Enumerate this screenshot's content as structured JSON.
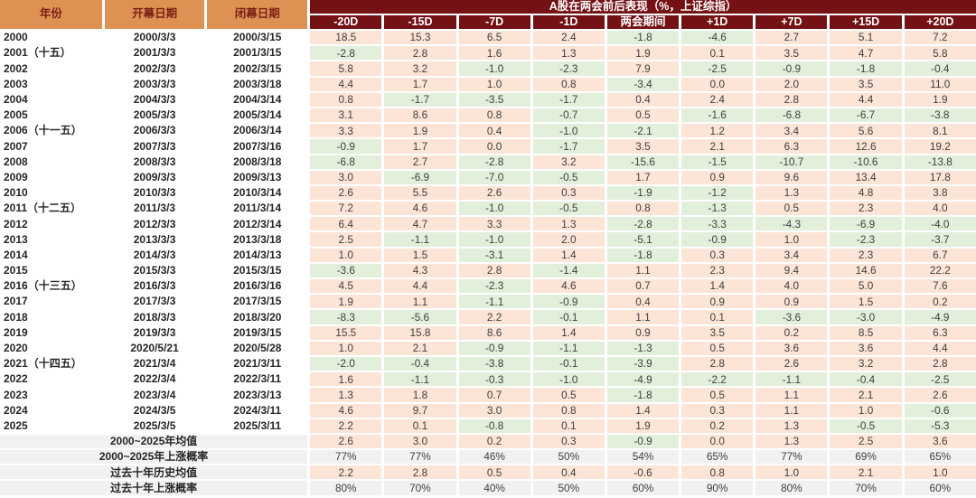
{
  "chart_data": {
    "type": "table",
    "title": "A股在两会前后表现（%，上证综指）",
    "columns_left": [
      "年份",
      "开幕日期",
      "闭幕日期"
    ],
    "sub_columns": [
      "-20D",
      "-15D",
      "-7D",
      "-1D",
      "两会期间",
      "+1D",
      "+7D",
      "+15D",
      "+20D"
    ],
    "rows": [
      {
        "year": "2000",
        "open": "2000/3/3",
        "close": "2000/3/15",
        "values": [
          "18.5",
          "15.3",
          "6.5",
          "2.4",
          "-1.8",
          "-4.6",
          "2.7",
          "5.1",
          "7.2"
        ]
      },
      {
        "year": "2001（十五）",
        "open": "2001/3/3",
        "close": "2001/3/15",
        "values": [
          "-2.8",
          "2.8",
          "1.6",
          "1.3",
          "1.9",
          "0.1",
          "3.5",
          "4.7",
          "5.8"
        ]
      },
      {
        "year": "2002",
        "open": "2002/3/3",
        "close": "2002/3/15",
        "values": [
          "5.8",
          "3.2",
          "-1.0",
          "-2.3",
          "7.9",
          "-2.5",
          "-0.9",
          "-1.8",
          "-0.4"
        ]
      },
      {
        "year": "2003",
        "open": "2003/3/3",
        "close": "2003/3/18",
        "values": [
          "4.4",
          "1.7",
          "1.0",
          "0.8",
          "-3.4",
          "0.0",
          "2.0",
          "3.5",
          "11.0"
        ]
      },
      {
        "year": "2004",
        "open": "2004/3/3",
        "close": "2004/3/14",
        "values": [
          "0.8",
          "-1.7",
          "-3.5",
          "-1.7",
          "0.4",
          "2.4",
          "2.8",
          "4.4",
          "1.9"
        ]
      },
      {
        "year": "2005",
        "open": "2005/3/3",
        "close": "2005/3/14",
        "values": [
          "3.1",
          "8.6",
          "0.8",
          "-0.7",
          "0.5",
          "-1.6",
          "-6.8",
          "-6.7",
          "-3.8"
        ]
      },
      {
        "year": "2006（十一五）",
        "open": "2006/3/3",
        "close": "2006/3/14",
        "values": [
          "3.3",
          "1.9",
          "0.4",
          "-1.0",
          "-2.1",
          "1.2",
          "3.4",
          "5.6",
          "8.1"
        ]
      },
      {
        "year": "2007",
        "open": "2007/3/3",
        "close": "2007/3/16",
        "values": [
          "-0.9",
          "1.7",
          "0.0",
          "-1.7",
          "3.5",
          "2.1",
          "6.3",
          "12.6",
          "19.2"
        ]
      },
      {
        "year": "2008",
        "open": "2008/3/3",
        "close": "2008/3/18",
        "values": [
          "-6.8",
          "2.7",
          "-2.8",
          "3.2",
          "-15.6",
          "-1.5",
          "-10.7",
          "-10.6",
          "-13.8"
        ]
      },
      {
        "year": "2009",
        "open": "2009/3/3",
        "close": "2009/3/13",
        "values": [
          "3.0",
          "-6.9",
          "-7.0",
          "-0.5",
          "1.7",
          "0.9",
          "9.6",
          "13.4",
          "17.8"
        ]
      },
      {
        "year": "2010",
        "open": "2010/3/3",
        "close": "2010/3/14",
        "values": [
          "2.6",
          "5.5",
          "2.6",
          "0.3",
          "-1.9",
          "-1.2",
          "1.3",
          "4.8",
          "3.8"
        ]
      },
      {
        "year": "2011（十二五）",
        "open": "2011/3/3",
        "close": "2011/3/14",
        "values": [
          "7.2",
          "4.6",
          "-1.0",
          "-0.5",
          "0.8",
          "-1.3",
          "0.5",
          "2.3",
          "4.0"
        ]
      },
      {
        "year": "2012",
        "open": "2012/3/3",
        "close": "2012/3/14",
        "values": [
          "6.4",
          "4.7",
          "3.3",
          "1.3",
          "-2.8",
          "-3.3",
          "-4.3",
          "-6.9",
          "-4.0"
        ]
      },
      {
        "year": "2013",
        "open": "2013/3/3",
        "close": "2013/3/18",
        "values": [
          "2.5",
          "-1.1",
          "-1.0",
          "2.0",
          "-5.1",
          "-0.9",
          "1.0",
          "-2.3",
          "-3.7"
        ]
      },
      {
        "year": "2014",
        "open": "2014/3/3",
        "close": "2014/3/13",
        "values": [
          "1.0",
          "1.5",
          "-3.1",
          "1.4",
          "-1.8",
          "0.3",
          "3.4",
          "2.3",
          "6.7"
        ]
      },
      {
        "year": "2015",
        "open": "2015/3/3",
        "close": "2015/3/15",
        "values": [
          "-3.6",
          "4.3",
          "2.8",
          "-1.4",
          "1.1",
          "2.3",
          "9.4",
          "14.6",
          "22.2"
        ]
      },
      {
        "year": "2016（十三五）",
        "open": "2016/3/3",
        "close": "2016/3/16",
        "values": [
          "4.5",
          "4.4",
          "-2.3",
          "4.6",
          "0.7",
          "1.4",
          "4.0",
          "5.0",
          "7.6"
        ]
      },
      {
        "year": "2017",
        "open": "2017/3/3",
        "close": "2017/3/15",
        "values": [
          "1.9",
          "1.1",
          "-1.1",
          "-0.9",
          "0.4",
          "0.9",
          "0.9",
          "1.5",
          "0.2"
        ]
      },
      {
        "year": "2018",
        "open": "2018/3/3",
        "close": "2018/3/20",
        "values": [
          "-8.3",
          "-5.6",
          "2.2",
          "-0.1",
          "1.1",
          "0.1",
          "-3.6",
          "-3.0",
          "-4.9"
        ]
      },
      {
        "year": "2019",
        "open": "2019/3/3",
        "close": "2019/3/15",
        "values": [
          "15.5",
          "15.8",
          "8.6",
          "1.4",
          "0.9",
          "3.5",
          "0.2",
          "8.5",
          "6.3"
        ]
      },
      {
        "year": "2020",
        "open": "2020/5/21",
        "close": "2020/5/28",
        "values": [
          "1.0",
          "2.1",
          "-0.9",
          "-1.1",
          "-1.3",
          "0.5",
          "3.6",
          "3.6",
          "4.4"
        ]
      },
      {
        "year": "2021（十四五）",
        "open": "2021/3/4",
        "close": "2021/3/11",
        "values": [
          "-2.0",
          "-0.4",
          "-3.8",
          "-0.1",
          "-3.9",
          "2.8",
          "2.6",
          "3.2",
          "2.8"
        ]
      },
      {
        "year": "2022",
        "open": "2022/3/4",
        "close": "2022/3/11",
        "values": [
          "1.6",
          "-1.1",
          "-0.3",
          "-1.0",
          "-4.9",
          "-2.2",
          "-1.1",
          "-0.4",
          "-2.5"
        ]
      },
      {
        "year": "2023",
        "open": "2023/3/4",
        "close": "2023/3/13",
        "values": [
          "1.3",
          "1.8",
          "0.7",
          "0.5",
          "-1.8",
          "0.5",
          "1.1",
          "2.1",
          "2.6"
        ]
      },
      {
        "year": "2024",
        "open": "2024/3/5",
        "close": "2024/3/11",
        "values": [
          "4.6",
          "9.7",
          "3.0",
          "0.8",
          "1.4",
          "0.3",
          "1.1",
          "1.0",
          "-0.6"
        ]
      },
      {
        "year": "2025",
        "open": "2025/3/5",
        "close": "2025/3/11",
        "values": [
          "2.2",
          "0.1",
          "-0.8",
          "0.1",
          "1.9",
          "0.2",
          "1.3",
          "-0.5",
          "-5.3"
        ]
      }
    ],
    "summary_rows": [
      {
        "label": "2000~2025年均值",
        "mode": "sign",
        "values": [
          "2.6",
          "3.0",
          "0.2",
          "0.3",
          "-0.9",
          "0.0",
          "1.3",
          "2.5",
          "3.6"
        ]
      },
      {
        "label": "2000~2025年上涨概率",
        "mode": "gray",
        "values": [
          "77%",
          "77%",
          "46%",
          "50%",
          "54%",
          "65%",
          "77%",
          "69%",
          "65%"
        ]
      },
      {
        "label": "过去十年历史均值",
        "mode": "pink",
        "values": [
          "2.2",
          "2.8",
          "0.5",
          "0.4",
          "-0.6",
          "0.8",
          "1.0",
          "2.1",
          "1.0"
        ]
      },
      {
        "label": "过去十年上涨概率",
        "mode": "gray",
        "values": [
          "80%",
          "70%",
          "40%",
          "50%",
          "60%",
          "90%",
          "80%",
          "70%",
          "60%"
        ]
      }
    ]
  },
  "colors": {
    "header_orange": "#DD9254",
    "header_orange_text": "#7C2016",
    "header_maroon": "#731114",
    "cell_up": "#FCE4D6",
    "cell_down": "#E2EFDA",
    "cell_gray": "#F1F1F1",
    "text_dark": "#262626",
    "text_value": "#3F3F3F"
  }
}
